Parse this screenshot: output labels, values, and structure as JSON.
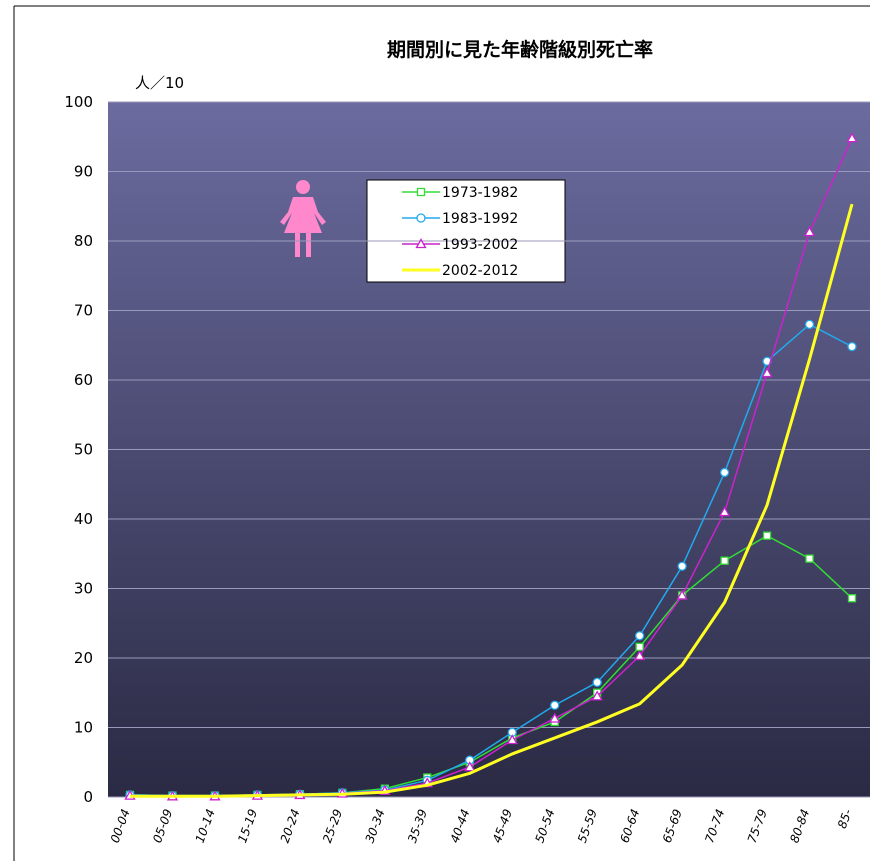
{
  "chart_data": {
    "type": "line",
    "title": "期間別に見た年齢階級別死亡率",
    "y_label": "人／10",
    "categories": [
      "00-04",
      "05-09",
      "10-14",
      "15-19",
      "20-24",
      "25-29",
      "30-34",
      "35-39",
      "40-44",
      "45-49",
      "50-54",
      "55-59",
      "60-64",
      "65-69",
      "70-74",
      "75-79",
      "80-84",
      "85-"
    ],
    "series": [
      {
        "name": "1973-1982",
        "color": "#33dd33",
        "marker": "square",
        "values": [
          0.3,
          0.2,
          0.2,
          0.3,
          0.4,
          0.6,
          1.2,
          2.8,
          5.0,
          8.5,
          10.8,
          15.0,
          21.6,
          29.0,
          34.0,
          37.6,
          34.3,
          28.6
        ]
      },
      {
        "name": "1983-1992",
        "color": "#22aaee",
        "marker": "circle",
        "values": [
          0.3,
          0.2,
          0.2,
          0.3,
          0.4,
          0.6,
          1.0,
          2.4,
          5.3,
          9.3,
          13.2,
          16.5,
          23.2,
          33.2,
          46.7,
          62.7,
          68.0,
          64.8
        ]
      },
      {
        "name": "1993-2002",
        "color": "#cc22cc",
        "marker": "triangle",
        "values": [
          0.2,
          0.1,
          0.1,
          0.2,
          0.3,
          0.5,
          0.9,
          2.0,
          4.3,
          8.2,
          11.3,
          14.5,
          20.3,
          29.0,
          41.0,
          61.0,
          81.3,
          94.8
        ]
      },
      {
        "name": "2002-2012",
        "color": "#ffff22",
        "marker": "none",
        "values": [
          0.1,
          0.1,
          0.1,
          0.2,
          0.3,
          0.4,
          0.7,
          1.7,
          3.4,
          6.2,
          8.5,
          10.8,
          13.4,
          19.0,
          28.0,
          42.0,
          63.0,
          85.3
        ]
      }
    ],
    "ylim": [
      0,
      100
    ],
    "yticks": [
      0,
      10,
      20,
      30,
      40,
      50,
      60,
      70,
      80,
      90,
      100
    ],
    "grid": true
  }
}
